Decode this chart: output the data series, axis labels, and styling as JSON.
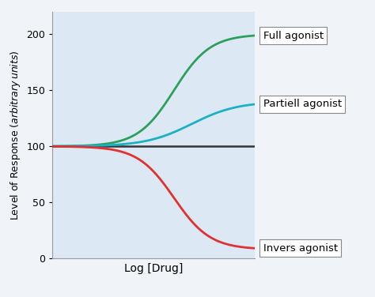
{
  "xlabel": "Log [Drug]",
  "ylabel": "Level of Response (arbitrary units)",
  "background_color": "#dce9f5",
  "outer_background": "#f0f4f8",
  "ylim": [
    0,
    220
  ],
  "yticks": [
    0,
    50,
    100,
    150,
    200
  ],
  "xlim": [
    -4,
    4
  ],
  "full_agonist": {
    "label": "Full agonist",
    "color": "#2ca05a",
    "y_min": 100,
    "y_max": 200,
    "ec50": 0.8,
    "hill": 1.4
  },
  "partial_agonist": {
    "label": "Partiell agonist",
    "color": "#1ab0c8",
    "y_min": 100,
    "y_max": 140,
    "ec50": 1.5,
    "hill": 1.1
  },
  "neutral": {
    "color": "#333333",
    "y_val": 100
  },
  "inverse_agonist": {
    "label": "Invers agonist",
    "color": "#e03030",
    "y_min": 8,
    "y_max": 100,
    "ec50": 0.8,
    "hill": 1.4
  },
  "annotation_fontsize": 9.5,
  "ylabel_fontsize": 9,
  "xlabel_fontsize": 10
}
